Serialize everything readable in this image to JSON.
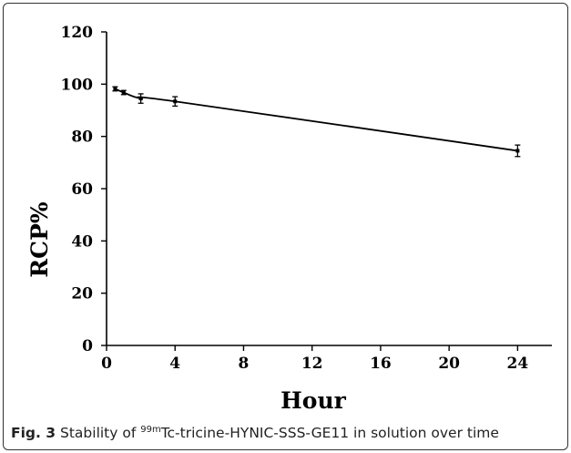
{
  "chart_data": {
    "type": "line",
    "title": "",
    "xlabel": "Hour",
    "ylabel": "RCP%",
    "xlim": [
      0,
      26
    ],
    "ylim": [
      0,
      120
    ],
    "xticks": [
      0,
      4,
      8,
      12,
      16,
      20,
      24
    ],
    "yticks": [
      0,
      20,
      40,
      60,
      80,
      100,
      120
    ],
    "grid": false,
    "series": [
      {
        "x": [
          0.5,
          1,
          2,
          4,
          24
        ],
        "y": [
          98.2,
          96.8,
          94.5,
          93.4,
          74.5
        ],
        "error": [
          0.8,
          0.8,
          1.8,
          1.8,
          2.2
        ]
      }
    ]
  },
  "caption": {
    "label": "Fig. 3",
    "text_before": " Stability of ",
    "superscript": "99m",
    "text_after": "Tc-tricine-HYNIC-SSS-GE11 in solution over time"
  }
}
